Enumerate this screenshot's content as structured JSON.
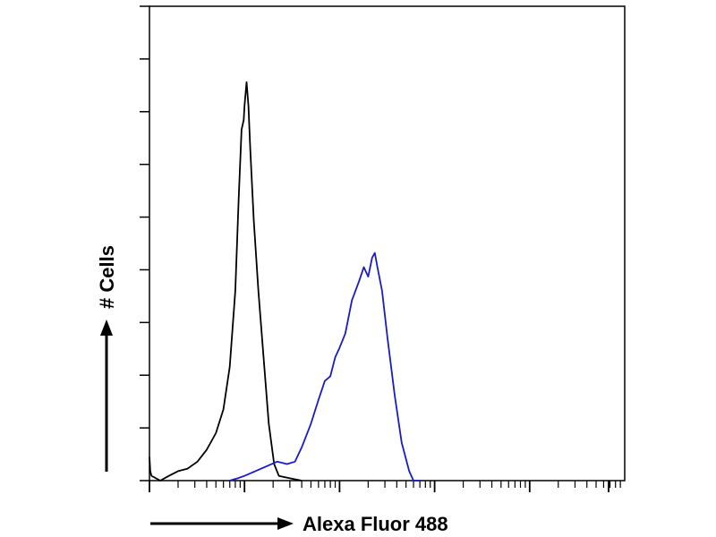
{
  "chart_data": {
    "type": "line",
    "chart_kind": "flow cytometry histogram",
    "title": "",
    "xlabel": "Alexa Fluor 488",
    "ylabel": "# Cells",
    "x_scale": "log",
    "xlim": [
      1,
      100000
    ],
    "ylim": [
      0,
      1
    ],
    "x_decades": 5,
    "y_ticks": 9,
    "grid": false,
    "legend": "none",
    "series": [
      {
        "color": "#000000",
        "points": [
          [
            1.0,
            0.05
          ],
          [
            1.02,
            0.02
          ],
          [
            1.05,
            0.01
          ],
          [
            1.3,
            0.0
          ],
          [
            1.6,
            0.01
          ],
          [
            2.0,
            0.02
          ],
          [
            2.5,
            0.025
          ],
          [
            3.2,
            0.04
          ],
          [
            4.0,
            0.065
          ],
          [
            5.0,
            0.1
          ],
          [
            6.0,
            0.15
          ],
          [
            7.0,
            0.24
          ],
          [
            8.0,
            0.4
          ],
          [
            8.7,
            0.6
          ],
          [
            9.3,
            0.74
          ],
          [
            9.8,
            0.76
          ],
          [
            10.0,
            0.79
          ],
          [
            10.5,
            0.84
          ],
          [
            11.0,
            0.79
          ],
          [
            11.5,
            0.7
          ],
          [
            12.5,
            0.55
          ],
          [
            14.0,
            0.4
          ],
          [
            16.0,
            0.25
          ],
          [
            18.0,
            0.12
          ],
          [
            20.5,
            0.035
          ],
          [
            23.0,
            0.01
          ],
          [
            30.0,
            0.005
          ],
          [
            40.0,
            0.0
          ]
        ]
      },
      {
        "color": "#1a1ac8",
        "points": [
          [
            7.0,
            0.0
          ],
          [
            8.5,
            0.005
          ],
          [
            10.0,
            0.01
          ],
          [
            13.0,
            0.02
          ],
          [
            17.0,
            0.03
          ],
          [
            22.0,
            0.04
          ],
          [
            28.0,
            0.035
          ],
          [
            34.0,
            0.04
          ],
          [
            40.0,
            0.07
          ],
          [
            50.0,
            0.12
          ],
          [
            60.0,
            0.17
          ],
          [
            70.0,
            0.21
          ],
          [
            80.0,
            0.22
          ],
          [
            90.0,
            0.26
          ],
          [
            100.0,
            0.28
          ],
          [
            115.0,
            0.31
          ],
          [
            135.0,
            0.38
          ],
          [
            160.0,
            0.42
          ],
          [
            180.0,
            0.45
          ],
          [
            200.0,
            0.43
          ],
          [
            220.0,
            0.47
          ],
          [
            235.0,
            0.48
          ],
          [
            250.0,
            0.45
          ],
          [
            280.0,
            0.4
          ],
          [
            320.0,
            0.3
          ],
          [
            380.0,
            0.18
          ],
          [
            450.0,
            0.08
          ],
          [
            540.0,
            0.02
          ],
          [
            600.0,
            0.0
          ],
          [
            700.0,
            0.0
          ]
        ]
      }
    ]
  }
}
